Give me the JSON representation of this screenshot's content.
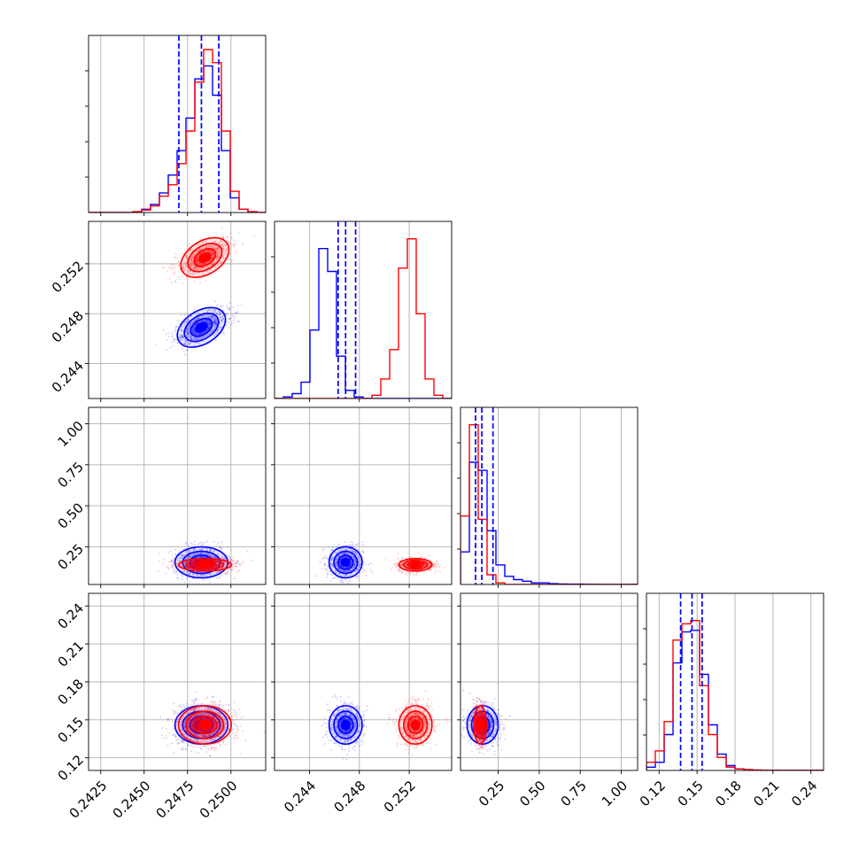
{
  "colors": {
    "series_a": "#0000ff",
    "series_b": "#ff0000",
    "grid": "#b0b0b0",
    "frame": "#000000"
  },
  "chart_data": {
    "type": "corner",
    "grid": true,
    "params": [
      {
        "range": [
          0.2418,
          0.252
        ],
        "ticks": [
          0.2425,
          0.245,
          0.2475,
          0.25
        ],
        "tick_labels": [
          "0.2425",
          "0.2450",
          "0.2475",
          "0.2500"
        ]
      },
      {
        "range": [
          0.2412,
          0.2554
        ],
        "ticks": [
          0.244,
          0.248,
          0.252
        ],
        "tick_labels": [
          "0.244",
          "0.248",
          "0.252"
        ]
      },
      {
        "range": [
          0.02,
          1.1
        ],
        "ticks": [
          0.25,
          0.5,
          0.75,
          1.0
        ],
        "tick_labels": [
          "0.25",
          "0.50",
          "0.75",
          "1.00"
        ]
      },
      {
        "range": [
          0.11,
          0.25
        ],
        "ticks": [
          0.12,
          0.15,
          0.18,
          0.21,
          0.24
        ],
        "tick_labels": [
          "0.12",
          "0.15",
          "0.18",
          "0.21",
          "0.24"
        ]
      }
    ],
    "series": [
      {
        "id": "blue",
        "color": "#0000ff",
        "means": [
          0.2483,
          0.2469,
          0.155,
          0.146
        ],
        "sds": [
          0.0008,
          0.0007,
          0.05,
          0.008
        ],
        "quantiles": [
          [
            0.247,
            0.2483,
            0.2493
          ],
          [
            0.2463,
            0.2469,
            0.2477
          ],
          [
            0.112,
            0.15,
            0.218
          ],
          [
            0.137,
            0.146,
            0.154
          ]
        ]
      },
      {
        "id": "red",
        "color": "#ff0000",
        "means": [
          0.2485,
          0.2525,
          0.14,
          0.146
        ],
        "sds": [
          0.0008,
          0.0007,
          0.02,
          0.008
        ]
      }
    ],
    "histograms": [
      {
        "edges": [
          0.2418,
          0.24231,
          0.24282,
          0.24333,
          0.24384,
          0.24435,
          0.24486,
          0.24537,
          0.24588,
          0.24639,
          0.2469,
          0.24741,
          0.24792,
          0.24843,
          0.24894,
          0.24945,
          0.24996,
          0.25047,
          0.25098,
          0.25149,
          0.252
        ],
        "blue": [
          0,
          0,
          0,
          0,
          0,
          0.005,
          0.02,
          0.05,
          0.12,
          0.23,
          0.38,
          0.58,
          0.82,
          0.9,
          0.72,
          0.38,
          0.09,
          0.02,
          0.005,
          0
        ],
        "red": [
          0,
          0,
          0,
          0,
          0,
          0.005,
          0.015,
          0.04,
          0.1,
          0.17,
          0.3,
          0.5,
          0.8,
          1.0,
          0.92,
          0.5,
          0.13,
          0.02,
          0.005,
          0
        ]
      },
      {
        "edges": [
          0.2412,
          0.24191,
          0.24262,
          0.24333,
          0.24404,
          0.24475,
          0.24546,
          0.24617,
          0.24688,
          0.24759,
          0.2483,
          0.24901,
          0.24972,
          0.25043,
          0.25114,
          0.25185,
          0.25256,
          0.25327,
          0.25398,
          0.25469,
          0.2554
        ],
        "blue": [
          0,
          0.01,
          0.03,
          0.1,
          0.42,
          0.92,
          0.78,
          0.26,
          0.05,
          0.01,
          0,
          0,
          0,
          0,
          0,
          0,
          0,
          0,
          0,
          0
        ],
        "red": [
          0,
          0,
          0,
          0,
          0,
          0,
          0,
          0,
          0,
          0,
          0,
          0.02,
          0.12,
          0.3,
          0.8,
          0.98,
          0.52,
          0.12,
          0.02,
          0
        ]
      },
      {
        "edges": [
          0.02,
          0.074,
          0.128,
          0.182,
          0.236,
          0.29,
          0.344,
          0.398,
          0.452,
          0.506,
          0.56,
          0.614,
          0.668,
          0.722,
          0.776,
          0.83,
          0.884,
          0.938,
          0.992,
          1.046,
          1.1
        ],
        "blue": [
          0.2,
          0.75,
          0.7,
          0.33,
          0.12,
          0.05,
          0.03,
          0.02,
          0.01,
          0.01,
          0.005,
          0.003,
          0.002,
          0.002,
          0.001,
          0.001,
          0,
          0,
          0,
          0.001
        ],
        "red": [
          0.42,
          0.98,
          0.4,
          0.06,
          0.01,
          0,
          0,
          0,
          0,
          0,
          0,
          0,
          0,
          0,
          0,
          0,
          0,
          0,
          0,
          0
        ]
      },
      {
        "edges": [
          0.11,
          0.117,
          0.124,
          0.131,
          0.138,
          0.145,
          0.152,
          0.159,
          0.166,
          0.173,
          0.18,
          0.187,
          0.194,
          0.201,
          0.208,
          0.215,
          0.222,
          0.229,
          0.236,
          0.243,
          0.25
        ],
        "blue": [
          0.02,
          0.05,
          0.22,
          0.66,
          0.85,
          0.86,
          0.59,
          0.28,
          0.1,
          0.03,
          0.01,
          0.005,
          0.002,
          0.001,
          0.001,
          0,
          0,
          0,
          0,
          0.001
        ],
        "red": [
          0.05,
          0.12,
          0.3,
          0.8,
          0.9,
          0.92,
          0.52,
          0.22,
          0.08,
          0.02,
          0.01,
          0.005,
          0.002,
          0.001,
          0.001,
          0,
          0,
          0,
          0,
          0.001
        ]
      }
    ]
  }
}
